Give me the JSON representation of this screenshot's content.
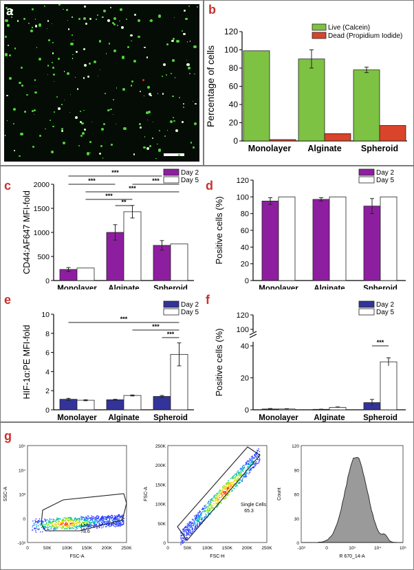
{
  "panels": {
    "a": "a",
    "b": "b",
    "c": "c",
    "d": "d",
    "e": "e",
    "f": "f",
    "g": "g"
  },
  "colors": {
    "live": "#7dc242",
    "dead": "#d9442a",
    "day2_purple": "#8e1ea0",
    "day2_blue": "#333399",
    "day5": "#ffffff",
    "axis": "#000000"
  },
  "chart_data": [
    {
      "id": "b",
      "type": "bar",
      "categories": [
        "Monolayer",
        "Alginate",
        "Spheroid"
      ],
      "ylabel": "Percentage of cells",
      "ylim": [
        0,
        120
      ],
      "yticks": [
        0,
        20,
        40,
        60,
        80,
        100,
        120
      ],
      "legend_position": "top-right",
      "series": [
        {
          "name": "Live (Calcein)",
          "values": [
            99,
            90,
            78
          ],
          "errors": [
            0,
            10,
            3
          ]
        },
        {
          "name": "Dead (Propidium Iodide)",
          "values": [
            1.5,
            8,
            17
          ],
          "errors": [
            0,
            0,
            0
          ]
        }
      ]
    },
    {
      "id": "c",
      "type": "bar",
      "categories": [
        "Monolayer",
        "Alginate",
        "Spheroid"
      ],
      "ylabel": "CD44:AF647 MFI-fold",
      "ylim": [
        0,
        2000
      ],
      "yticks": [
        0,
        500,
        1000,
        1500,
        2000
      ],
      "legend_position": "top-right",
      "series": [
        {
          "name": "Day 2",
          "values": [
            230,
            1000,
            730
          ],
          "errors": [
            40,
            160,
            100
          ]
        },
        {
          "name": "Day 5",
          "values": [
            260,
            1430,
            760
          ],
          "errors": [
            0,
            130,
            0
          ]
        }
      ],
      "significance": [
        {
          "label": "***",
          "from": [
            0,
            0
          ],
          "to": [
            2,
            0
          ]
        },
        {
          "label": "***",
          "from": [
            0,
            0
          ],
          "to": [
            1,
            0
          ]
        },
        {
          "label": "***",
          "from": [
            1,
            1
          ],
          "to": [
            2,
            1
          ]
        },
        {
          "label": "***",
          "from": [
            0,
            1
          ],
          "to": [
            2,
            1
          ]
        },
        {
          "label": "***",
          "from": [
            0,
            1
          ],
          "to": [
            1,
            1
          ]
        },
        {
          "label": "**",
          "from": [
            1,
            0
          ],
          "to": [
            1,
            1
          ]
        }
      ]
    },
    {
      "id": "d",
      "type": "bar",
      "categories": [
        "Monolayer",
        "Alginate",
        "Spheroid"
      ],
      "ylabel": "Positive cells (%)",
      "ylim": [
        0,
        120
      ],
      "yticks": [
        0,
        20,
        40,
        60,
        80,
        100,
        120
      ],
      "legend_position": "top-right",
      "series": [
        {
          "name": "Day 2",
          "values": [
            95,
            97,
            89
          ],
          "errors": [
            4,
            2,
            9
          ]
        },
        {
          "name": "Day 5",
          "values": [
            100,
            100,
            100
          ],
          "errors": [
            0,
            0,
            0
          ]
        }
      ]
    },
    {
      "id": "e",
      "type": "bar",
      "categories": [
        "Monolayer",
        "Alginate",
        "Spheroid"
      ],
      "ylabel": "HIF-1α:PE MFI-fold",
      "ylim": [
        0,
        10
      ],
      "yticks": [
        0,
        2,
        4,
        6,
        8,
        10
      ],
      "legend_position": "top-right",
      "series": [
        {
          "name": "Day 2",
          "values": [
            1.1,
            1.05,
            1.4
          ],
          "errors": [
            0.1,
            0.05,
            0.1
          ]
        },
        {
          "name": "Day 5",
          "values": [
            1.0,
            1.5,
            5.8
          ],
          "errors": [
            0.05,
            0.05,
            1.2
          ]
        }
      ],
      "significance": [
        {
          "label": "***",
          "from": [
            0,
            0
          ],
          "to": [
            2,
            1
          ]
        },
        {
          "label": "***",
          "from": [
            1,
            1
          ],
          "to": [
            2,
            1
          ]
        },
        {
          "label": "***",
          "from": [
            2,
            0
          ],
          "to": [
            2,
            1
          ]
        }
      ]
    },
    {
      "id": "f",
      "type": "bar",
      "categories": [
        "Monolayer",
        "Alginate",
        "Spheroid"
      ],
      "ylabel": "Positive cells (%)",
      "ylim": [
        0,
        120
      ],
      "axis_break": [
        40,
        100
      ],
      "yticks_lower": [
        0,
        20,
        40
      ],
      "yticks_upper": [
        100,
        120
      ],
      "legend_position": "top-right",
      "series": [
        {
          "name": "Day 2",
          "values": [
            0.5,
            0.3,
            4.5
          ],
          "errors": [
            0.3,
            0.1,
            2
          ]
        },
        {
          "name": "Day 5",
          "values": [
            0.5,
            1.5,
            30
          ],
          "errors": [
            0.2,
            0.3,
            2.5
          ]
        }
      ],
      "significance": [
        {
          "label": "***",
          "from": [
            2,
            0
          ],
          "to": [
            2,
            1
          ]
        }
      ]
    }
  ],
  "flow": {
    "p1": {
      "ylabel": "SSC-A",
      "xlabel": "FSC-A",
      "yticks": [
        "10⁵",
        "10⁴",
        "10³",
        "0",
        "-10³"
      ],
      "xticks": [
        "0",
        "50K",
        "100K",
        "150K",
        "200K",
        "250K"
      ],
      "gate_name": "Live",
      "gate_value": "78.6"
    },
    "p2": {
      "ylabel": "FSC-A",
      "xlabel": "FSC-H",
      "yticks": [
        "250K",
        "200K",
        "150K",
        "100K",
        "50K",
        "0"
      ],
      "xticks": [
        "0",
        "50K",
        "100K",
        "150K",
        "200K",
        "250K"
      ],
      "gate_name": "Single Cells",
      "gate_value": "65.3"
    },
    "p3": {
      "ylabel": "Count",
      "xlabel": "R 670_14-A",
      "yticks": [
        "120",
        "90",
        "60",
        "30",
        "0"
      ],
      "xticks": [
        "-10³",
        "0",
        "10³",
        "10⁴",
        "10⁵"
      ]
    }
  }
}
